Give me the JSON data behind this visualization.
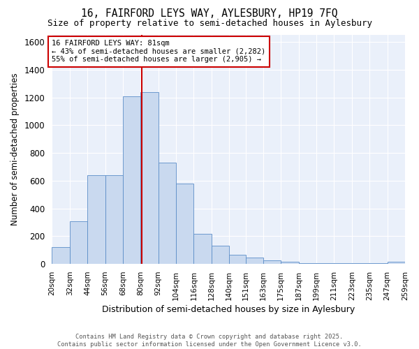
{
  "title1": "16, FAIRFORD LEYS WAY, AYLESBURY, HP19 7FQ",
  "title2": "Size of property relative to semi-detached houses in Aylesbury",
  "bins": [
    20,
    32,
    44,
    56,
    68,
    80,
    92,
    104,
    116,
    128,
    140,
    151,
    163,
    175,
    187,
    199,
    211,
    223,
    235,
    247,
    259
  ],
  "bar_heights": [
    120,
    310,
    640,
    640,
    1210,
    1240,
    730,
    580,
    215,
    130,
    65,
    45,
    25,
    15,
    5,
    5,
    5,
    5,
    5,
    15
  ],
  "property_size": 81,
  "annotation_text": "16 FAIRFORD LEYS WAY: 81sqm\n← 43% of semi-detached houses are smaller (2,282)\n55% of semi-detached houses are larger (2,905) →",
  "xlabel": "Distribution of semi-detached houses by size in Aylesbury",
  "ylabel": "Number of semi-detached properties",
  "bar_color": "#c9d9ef",
  "bar_edge_color": "#5b8dc8",
  "line_color": "#cc0000",
  "annotation_box_edge_color": "#cc0000",
  "background_color": "#eaf0fa",
  "grid_color": "#ffffff",
  "ylim": [
    0,
    1650
  ],
  "yticks": [
    0,
    200,
    400,
    600,
    800,
    1000,
    1200,
    1400,
    1600
  ],
  "footer_text": "Contains HM Land Registry data © Crown copyright and database right 2025.\nContains public sector information licensed under the Open Government Licence v3.0."
}
